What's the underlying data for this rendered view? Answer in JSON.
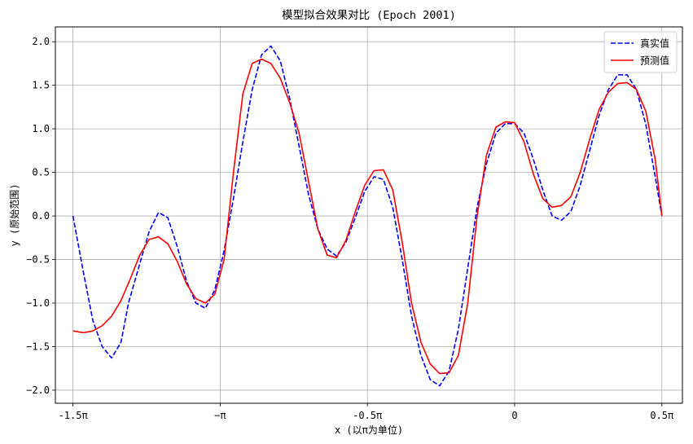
{
  "chart_data": {
    "type": "line",
    "title": "模型拟合效果对比 (Epoch 2001)",
    "xlabel": "x (以π为单位)",
    "ylabel": "y (原始范围)",
    "xlim": [
      -4.9,
      1.79
    ],
    "ylim": [
      -2.15,
      2.17
    ],
    "grid": true,
    "legend_position": "top-right",
    "xticks": [
      {
        "value": -4.712,
        "label": "-1.5π"
      },
      {
        "value": -3.1416,
        "label": "−π"
      },
      {
        "value": -1.5708,
        "label": "-0.5π"
      },
      {
        "value": 0,
        "label": "0"
      },
      {
        "value": 1.5708,
        "label": "0.5π"
      }
    ],
    "yticks": [
      {
        "value": 2.0,
        "label": "2.0"
      },
      {
        "value": 1.5,
        "label": "1.5"
      },
      {
        "value": 1.0,
        "label": "1.0"
      },
      {
        "value": 0.5,
        "label": "0.5"
      },
      {
        "value": 0.0,
        "label": "0.0"
      },
      {
        "value": -0.5,
        "label": "−0.5"
      },
      {
        "value": -1.0,
        "label": "−1.0"
      },
      {
        "value": -1.5,
        "label": "−1.5"
      },
      {
        "value": -2.0,
        "label": "−2.0"
      }
    ],
    "series": [
      {
        "name": "真实值",
        "color": "#0000ff",
        "dash": "dashed",
        "x": [
          -4.712,
          -4.6,
          -4.5,
          -4.4,
          -4.3,
          -4.2,
          -4.12,
          -4.0,
          -3.9,
          -3.8,
          -3.7,
          -3.6,
          -3.5,
          -3.4,
          -3.3,
          -3.2,
          -3.1,
          -3.0,
          -2.9,
          -2.8,
          -2.7,
          -2.6,
          -2.5,
          -2.4,
          -2.3,
          -2.2,
          -2.1,
          -2.0,
          -1.9,
          -1.8,
          -1.7,
          -1.6,
          -1.5,
          -1.4,
          -1.3,
          -1.2,
          -1.1,
          -1.0,
          -0.9,
          -0.8,
          -0.7,
          -0.6,
          -0.5,
          -0.4,
          -0.3,
          -0.2,
          -0.1,
          0.0,
          0.1,
          0.2,
          0.3,
          0.4,
          0.5,
          0.6,
          0.7,
          0.8,
          0.9,
          1.0,
          1.1,
          1.2,
          1.3,
          1.4,
          1.5,
          1.571
        ],
        "y": [
          0.0,
          -0.65,
          -1.2,
          -1.5,
          -1.63,
          -1.45,
          -1.0,
          -0.55,
          -0.18,
          0.04,
          -0.02,
          -0.35,
          -0.75,
          -1.0,
          -1.06,
          -0.85,
          -0.4,
          0.2,
          0.85,
          1.45,
          1.85,
          1.95,
          1.78,
          1.35,
          0.8,
          0.25,
          -0.15,
          -0.38,
          -0.46,
          -0.3,
          -0.02,
          0.28,
          0.45,
          0.42,
          0.1,
          -0.5,
          -1.15,
          -1.6,
          -1.88,
          -1.95,
          -1.78,
          -1.3,
          -0.6,
          0.1,
          0.6,
          0.95,
          1.06,
          1.06,
          0.95,
          0.65,
          0.3,
          0.0,
          -0.05,
          0.05,
          0.35,
          0.75,
          1.15,
          1.45,
          1.62,
          1.62,
          1.45,
          1.05,
          0.45,
          0.0
        ]
      },
      {
        "name": "预测值",
        "color": "#ff0000",
        "dash": "solid",
        "x": [
          -4.712,
          -4.6,
          -4.5,
          -4.4,
          -4.3,
          -4.2,
          -4.1,
          -4.0,
          -3.9,
          -3.8,
          -3.7,
          -3.6,
          -3.5,
          -3.4,
          -3.3,
          -3.2,
          -3.1,
          -3.0,
          -2.9,
          -2.8,
          -2.7,
          -2.6,
          -2.5,
          -2.4,
          -2.3,
          -2.2,
          -2.1,
          -2.0,
          -1.9,
          -1.8,
          -1.7,
          -1.6,
          -1.5,
          -1.4,
          -1.3,
          -1.2,
          -1.1,
          -1.0,
          -0.9,
          -0.8,
          -0.7,
          -0.6,
          -0.5,
          -0.4,
          -0.3,
          -0.2,
          -0.1,
          0.0,
          0.1,
          0.2,
          0.3,
          0.4,
          0.5,
          0.6,
          0.7,
          0.8,
          0.9,
          1.0,
          1.1,
          1.2,
          1.3,
          1.4,
          1.5,
          1.571
        ],
        "y": [
          -1.32,
          -1.34,
          -1.32,
          -1.26,
          -1.15,
          -0.97,
          -0.72,
          -0.45,
          -0.27,
          -0.24,
          -0.32,
          -0.52,
          -0.78,
          -0.95,
          -1.0,
          -0.9,
          -0.5,
          0.5,
          1.4,
          1.75,
          1.8,
          1.75,
          1.58,
          1.3,
          0.95,
          0.4,
          -0.15,
          -0.45,
          -0.48,
          -0.28,
          0.05,
          0.35,
          0.52,
          0.53,
          0.3,
          -0.3,
          -1.0,
          -1.45,
          -1.7,
          -1.81,
          -1.8,
          -1.6,
          -1.0,
          0.0,
          0.7,
          1.02,
          1.08,
          1.07,
          0.85,
          0.48,
          0.2,
          0.1,
          0.12,
          0.22,
          0.5,
          0.88,
          1.22,
          1.42,
          1.52,
          1.53,
          1.45,
          1.2,
          0.65,
          0.0
        ]
      }
    ]
  }
}
